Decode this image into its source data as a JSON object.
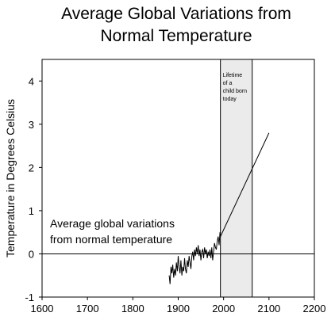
{
  "chart_data": {
    "type": "line",
    "title_lines": [
      "Average Global Variations from",
      "Normal Temperature"
    ],
    "xlabel": "",
    "ylabel": "Temperature in Degrees Celsius",
    "xlim": [
      1600,
      2200
    ],
    "ylim": [
      -1,
      4.5
    ],
    "xticks": [
      1600,
      1700,
      1800,
      1900,
      2000,
      2100,
      2200
    ],
    "yticks": [
      -1,
      0,
      1,
      2,
      3,
      4
    ],
    "reference_line_y": 0,
    "annotation_lines": [
      "Average global variations",
      "from normal temperature"
    ],
    "band": {
      "x_start": 1993,
      "x_end": 2063,
      "label_lines": [
        "Lifetime",
        "of a",
        "child born",
        "today"
      ],
      "fill": "#ebebeb"
    },
    "series": [
      {
        "style": "observed",
        "x": [
          1880,
          1882,
          1884,
          1886,
          1888,
          1890,
          1892,
          1894,
          1896,
          1898,
          1900,
          1902,
          1904,
          1906,
          1908,
          1910,
          1912,
          1914,
          1916,
          1918,
          1920,
          1922,
          1924,
          1926,
          1928,
          1930,
          1932,
          1934,
          1936,
          1938,
          1940,
          1942,
          1944,
          1946,
          1948,
          1950,
          1952,
          1954,
          1956,
          1958,
          1960,
          1962,
          1964,
          1966,
          1968,
          1970,
          1972,
          1974,
          1976,
          1978,
          1980,
          1982,
          1984,
          1986,
          1988,
          1990,
          1992,
          1993
        ],
        "y": [
          -0.5,
          -0.7,
          -0.3,
          -0.45,
          -0.25,
          -0.55,
          -0.35,
          -0.5,
          -0.2,
          -0.4,
          -0.05,
          -0.3,
          -0.45,
          -0.15,
          -0.5,
          -0.3,
          -0.4,
          -0.1,
          -0.35,
          -0.45,
          -0.15,
          -0.3,
          -0.05,
          -0.2,
          -0.35,
          -0.05,
          0.05,
          -0.15,
          0.1,
          -0.05,
          0.15,
          0.0,
          0.2,
          -0.05,
          0.1,
          -0.15,
          0.05,
          0.1,
          -0.1,
          0.15,
          0.0,
          0.1,
          -0.1,
          0.05,
          -0.05,
          0.1,
          -0.1,
          0.15,
          -0.15,
          0.05,
          0.25,
          0.15,
          0.1,
          0.3,
          0.4,
          0.2,
          0.5,
          0.4
        ]
      },
      {
        "style": "projection",
        "x": [
          1993,
          2100
        ],
        "y": [
          0.4,
          2.8
        ]
      }
    ],
    "grid": false,
    "colors": {
      "line": "#000000",
      "axis": "#000000",
      "background": "#ffffff"
    }
  }
}
